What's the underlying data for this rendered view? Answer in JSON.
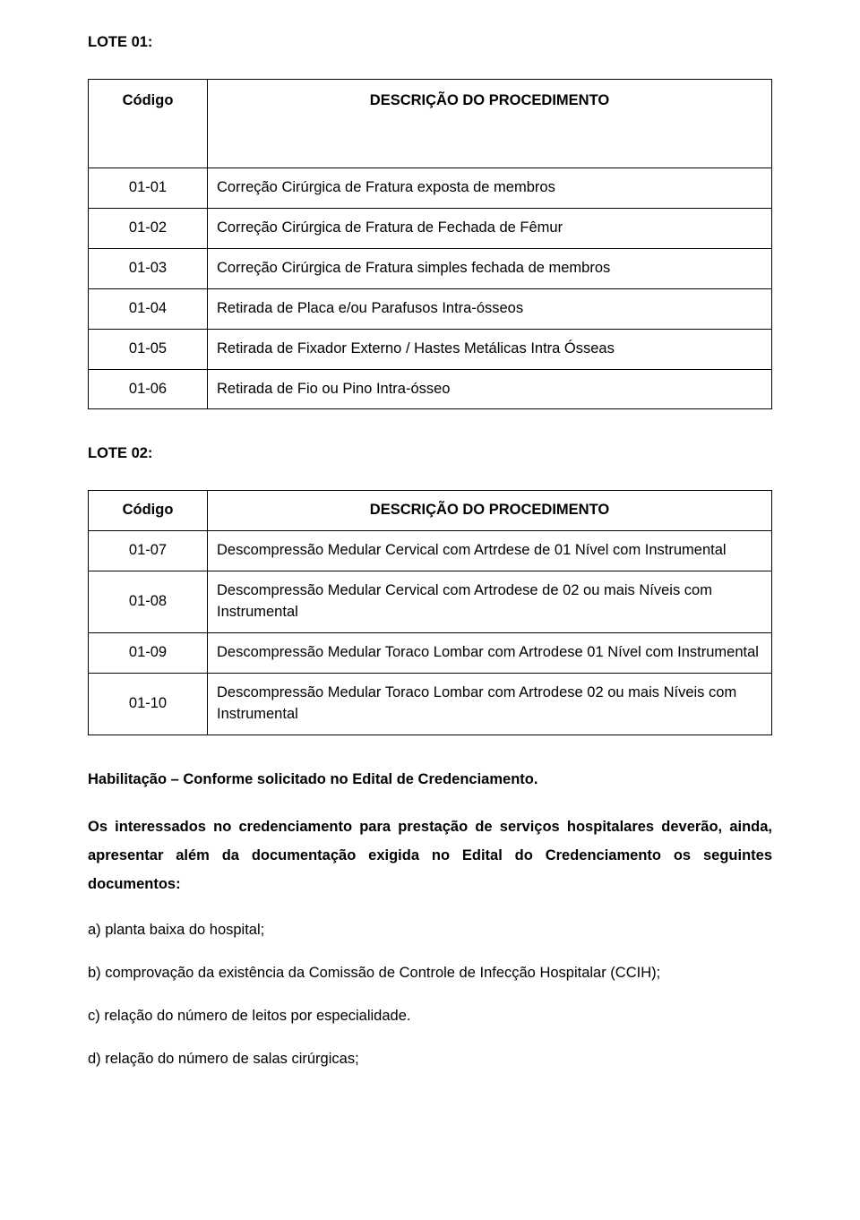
{
  "lote01": {
    "heading": "LOTE 01:",
    "header": {
      "code": "Código",
      "desc": "DESCRIÇÃO DO PROCEDIMENTO"
    },
    "rows": [
      {
        "code": "01-01",
        "desc": "Correção Cirúrgica de Fratura exposta  de membros"
      },
      {
        "code": "01-02",
        "desc": "Correção Cirúrgica  de Fratura de Fechada de Fêmur"
      },
      {
        "code": "01-03",
        "desc": "Correção Cirúrgica de Fratura simples fechada de membros"
      },
      {
        "code": "01-04",
        "desc": "Retirada de Placa e/ou Parafusos Intra-ósseos"
      },
      {
        "code": "01-05",
        "desc": "Retirada de Fixador Externo / Hastes Metálicas Intra Ósseas"
      },
      {
        "code": "01-06",
        "desc": "Retirada de Fio ou Pino Intra-ósseo"
      }
    ]
  },
  "lote02": {
    "heading": "LOTE 02:",
    "header": {
      "code": "Código",
      "desc": "DESCRIÇÃO DO PROCEDIMENTO"
    },
    "rows": [
      {
        "code": "01-07",
        "desc": "Descompressão Medular Cervical com Artrdese  de 01 Nível com Instrumental"
      },
      {
        "code": "01-08",
        "desc": "Descompressão Medular Cervical com Artrodese de 02 ou mais Níveis com Instrumental"
      },
      {
        "code": "01-09",
        "desc": "Descompressão Medular Toraco Lombar com Artrodese 01 Nível com Instrumental"
      },
      {
        "code": "01-10",
        "desc": "Descompressão Medular Toraco Lombar com Artrodese 02 ou mais Níveis com Instrumental"
      }
    ]
  },
  "para": {
    "hab_bold": "Habilitação – Conforme solicitado no Edital de Credenciamento.",
    "intro": "Os interessados no credenciamento para prestação de serviços hospitalares deverão, ainda, apresentar além da documentação exigida no Edital do Credenciamento os seguintes documentos:",
    "a": "a) planta baixa do hospital;",
    "b": "b) comprovação da existência da Comissão de Controle de Infecção Hospitalar (CCIH);",
    "c": "c) relação do número de leitos por especialidade.",
    "d": "d) relação do número de salas cirúrgicas;"
  }
}
